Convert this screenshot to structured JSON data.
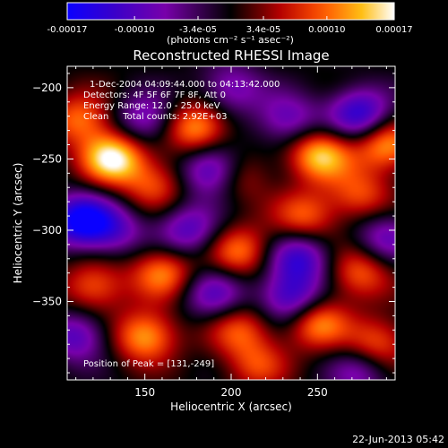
{
  "colorbar": {
    "tick_labels": [
      "-0.00017",
      "-0.00010",
      "-3.4e-05",
      "3.4e-05",
      "0.00010",
      "0.00017"
    ],
    "tick_values": [
      -0.00017,
      -0.0001,
      -3.4e-05,
      3.4e-05,
      0.0001,
      0.00017
    ],
    "range": [
      -0.00017,
      0.00017
    ],
    "unit_label": "(photons cm⁻² s⁻¹ asec⁻²)",
    "colors": [
      "#0a00ff",
      "#3a00c8",
      "#8c00b4",
      "#000000",
      "#b40000",
      "#ff5000",
      "#ffb400",
      "#ffffff"
    ]
  },
  "chart_data": {
    "type": "heatmap",
    "title": "Reconstructed RHESSI Image",
    "xlabel": "Heliocentric X (arcsec)",
    "ylabel": "Heliocentric Y (arcsec)",
    "xlim": [
      105,
      295
    ],
    "ylim": [
      -405,
      -185
    ],
    "xticks": [
      150,
      200,
      250
    ],
    "yticks": [
      -200,
      -250,
      -300,
      -350
    ],
    "info_lines": [
      "1-Dec-2004 04:09:44.000 to 04:13:42.000",
      "Detectors: 4F 5F 6F 7F 8F, Att 0",
      "Energy Range: 12.0 - 25.0 keV",
      "Clean     Total counts: 2.92E+03"
    ],
    "peak_label": "Position of Peak = [131,-249]",
    "peak_position": [
      131,
      -249
    ],
    "sources": [
      {
        "x": 131,
        "y": -249,
        "v": 1.0
      },
      {
        "x": 112,
        "y": -222,
        "v": 0.6
      },
      {
        "x": 180,
        "y": -228,
        "v": 0.75
      },
      {
        "x": 155,
        "y": -268,
        "v": 0.5
      },
      {
        "x": 203,
        "y": -262,
        "v": 0.45
      },
      {
        "x": 252,
        "y": -247,
        "v": 0.85
      },
      {
        "x": 290,
        "y": -240,
        "v": 0.7
      },
      {
        "x": 243,
        "y": -290,
        "v": 0.55
      },
      {
        "x": 275,
        "y": -275,
        "v": 0.5
      },
      {
        "x": 205,
        "y": -315,
        "v": 0.6
      },
      {
        "x": 160,
        "y": -330,
        "v": 0.65
      },
      {
        "x": 120,
        "y": -340,
        "v": 0.55
      },
      {
        "x": 275,
        "y": -330,
        "v": 0.55
      },
      {
        "x": 250,
        "y": -365,
        "v": 0.7
      },
      {
        "x": 150,
        "y": -375,
        "v": 0.75
      },
      {
        "x": 205,
        "y": -370,
        "v": 0.5
      },
      {
        "x": 285,
        "y": -380,
        "v": 0.55
      },
      {
        "x": 215,
        "y": -395,
        "v": 0.45
      },
      {
        "x": 190,
        "y": -258,
        "v": -0.85
      },
      {
        "x": 112,
        "y": -293,
        "v": -1.0
      },
      {
        "x": 275,
        "y": -218,
        "v": -0.8
      },
      {
        "x": 233,
        "y": -222,
        "v": -0.55
      },
      {
        "x": 150,
        "y": -222,
        "v": -0.55
      },
      {
        "x": 200,
        "y": -200,
        "v": -0.5
      },
      {
        "x": 240,
        "y": -320,
        "v": -0.7
      },
      {
        "x": 235,
        "y": -348,
        "v": -0.75
      },
      {
        "x": 175,
        "y": -300,
        "v": -0.6
      },
      {
        "x": 132,
        "y": -300,
        "v": -0.5
      },
      {
        "x": 190,
        "y": -345,
        "v": -0.55
      },
      {
        "x": 290,
        "y": -305,
        "v": -0.5
      },
      {
        "x": 110,
        "y": -375,
        "v": -0.6
      },
      {
        "x": 275,
        "y": -400,
        "v": -0.45
      }
    ]
  },
  "footer": {
    "timestamp": "22-Jun-2013 05:42"
  }
}
